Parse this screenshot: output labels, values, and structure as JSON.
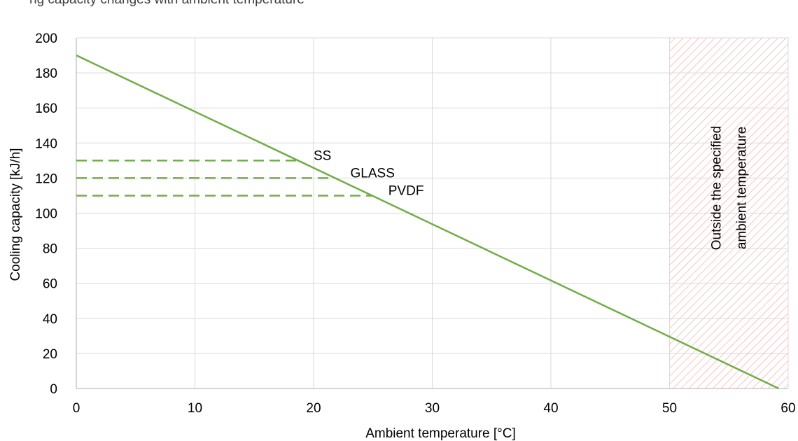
{
  "header_text": "ng capacity changes with ambient temperature",
  "colors": {
    "line": "#70AD47",
    "hatch": "#F4A0A0",
    "grid": "#D9D9D9",
    "axis": "#BFBFBF"
  },
  "chart_data": {
    "type": "line",
    "title": "",
    "xlabel": "Ambient temperature [°C]",
    "ylabel": "Cooling capacity [kJ/h]",
    "xlim": [
      0,
      60
    ],
    "ylim": [
      0,
      200
    ],
    "xticks": [
      0,
      10,
      20,
      30,
      40,
      50,
      60
    ],
    "yticks": [
      0,
      20,
      40,
      60,
      80,
      100,
      120,
      140,
      160,
      180,
      200
    ],
    "grid": true,
    "series": [
      {
        "x": [
          0,
          59.2
        ],
        "y": [
          190,
          0
        ]
      }
    ],
    "reference_lines": [
      {
        "label": "SS",
        "y": 130,
        "x_end": 18.7
      },
      {
        "label": "GLASS",
        "y": 120,
        "x_end": 21.8
      },
      {
        "label": "PVDF",
        "y": 110,
        "x_end": 25
      }
    ],
    "shaded_region": {
      "x_start": 50,
      "x_end": 60,
      "label_lines": [
        "Outside the specified",
        "ambient temperature"
      ]
    }
  }
}
